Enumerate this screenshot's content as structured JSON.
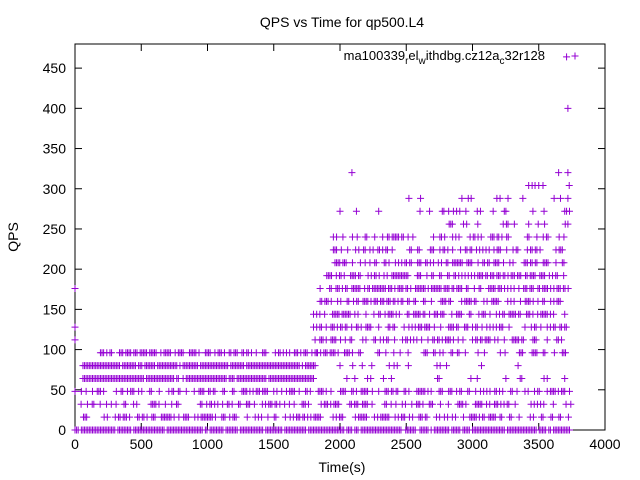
{
  "chart_data": {
    "type": "scatter",
    "title": "QPS vs Time for qp500.L4",
    "xlabel": "Time(s)",
    "ylabel": "QPS",
    "xlim": [
      0,
      4000
    ],
    "ylim": [
      0,
      480
    ],
    "xticks": [
      "0",
      "500",
      "1000",
      "1500",
      "2000",
      "2500",
      "3000",
      "3500",
      "4000"
    ],
    "yticks": [
      "0",
      "50",
      "100",
      "150",
      "200",
      "250",
      "300",
      "350",
      "400",
      "450"
    ],
    "grid": false,
    "legend_position": "top-right",
    "marker": "+",
    "series": [
      {
        "name_parts": [
          "ma100339",
          "r",
          "el",
          "w",
          "ithdbg.cz12a",
          "c",
          "32r128"
        ],
        "color": "#9400d3",
        "bands": [
          {
            "y": 0,
            "x_from": 0,
            "x_to": 3740,
            "density": 0.9
          },
          {
            "y": 16,
            "x_from": 40,
            "x_to": 3740,
            "density": 0.45
          },
          {
            "y": 32,
            "x_from": 10,
            "x_to": 3760,
            "density": 0.35
          },
          {
            "y": 48,
            "x_from": 0,
            "x_to": 3740,
            "density": 0.45
          },
          {
            "y": 64,
            "x_from": 60,
            "x_to": 1800,
            "density": 0.95
          },
          {
            "y": 64,
            "x_from": 1800,
            "x_to": 3720,
            "density": 0.12
          },
          {
            "y": 80,
            "x_from": 60,
            "x_to": 1820,
            "density": 0.95
          },
          {
            "y": 80,
            "x_from": 1820,
            "x_to": 3720,
            "density": 0.08
          },
          {
            "y": 96,
            "x_from": 180,
            "x_to": 1830,
            "density": 0.6
          },
          {
            "y": 96,
            "x_from": 1830,
            "x_to": 3720,
            "density": 0.3
          },
          {
            "y": 112,
            "x_from": 1800,
            "x_to": 3720,
            "density": 0.45
          },
          {
            "y": 128,
            "x_from": 1800,
            "x_to": 3720,
            "density": 0.5
          },
          {
            "y": 144,
            "x_from": 1800,
            "x_to": 3720,
            "density": 0.55
          },
          {
            "y": 160,
            "x_from": 1850,
            "x_to": 3720,
            "density": 0.55
          },
          {
            "y": 176,
            "x_from": 1850,
            "x_to": 3730,
            "density": 0.6
          },
          {
            "y": 192,
            "x_from": 1900,
            "x_to": 3720,
            "density": 0.55
          },
          {
            "y": 208,
            "x_from": 1950,
            "x_to": 3720,
            "density": 0.45
          },
          {
            "y": 224,
            "x_from": 1950,
            "x_to": 3720,
            "density": 0.35
          },
          {
            "y": 240,
            "x_from": 1950,
            "x_to": 3700,
            "density": 0.3
          },
          {
            "y": 256,
            "x_from": 2800,
            "x_to": 3740,
            "density": 0.2
          },
          {
            "y": 272,
            "x_from": 1980,
            "x_to": 3740,
            "density": 0.12
          },
          {
            "y": 288,
            "x_from": 2500,
            "x_to": 3740,
            "density": 0.1
          },
          {
            "y": 304,
            "x_from": 3400,
            "x_to": 3740,
            "density": 0.1
          },
          {
            "y": 320,
            "x_from": 3650,
            "x_to": 3740,
            "density": 0.3
          }
        ],
        "points": [
          [
            0,
            176
          ],
          [
            0,
            128
          ],
          [
            0,
            112
          ],
          [
            2090,
            320
          ],
          [
            2000,
            272
          ],
          [
            2520,
            288
          ],
          [
            2990,
            288
          ],
          [
            2880,
            272
          ],
          [
            2950,
            272
          ],
          [
            3060,
            272
          ],
          [
            3380,
            288
          ],
          [
            3450,
            304
          ],
          [
            3500,
            304
          ],
          [
            3540,
            272
          ],
          [
            3650,
            320
          ],
          [
            3720,
            320
          ],
          [
            3730,
            304
          ],
          [
            3720,
            288
          ],
          [
            3710,
            272
          ],
          [
            3700,
            256
          ],
          [
            3720,
            256
          ],
          [
            3710,
            464
          ],
          [
            3720,
            400
          ]
        ]
      }
    ]
  }
}
